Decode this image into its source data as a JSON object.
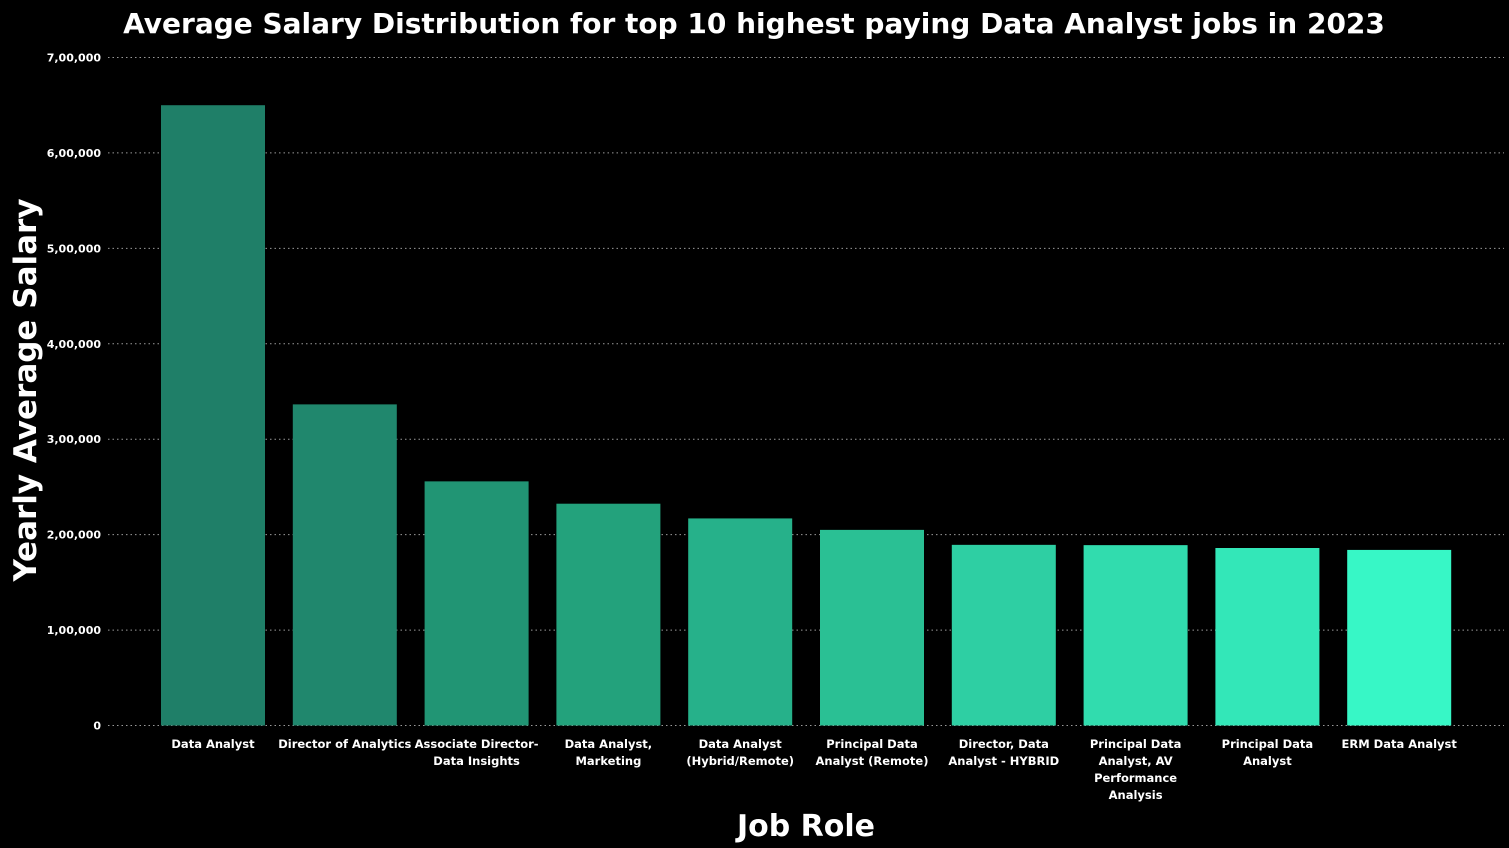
{
  "chart_data": {
    "type": "bar",
    "title": "Average Salary Distribution for top 10 highest paying Data Analyst jobs in 2023",
    "xlabel": "Job Role",
    "ylabel": "Yearly Average Salary",
    "ylim": [
      0,
      700000
    ],
    "yticks": [
      0,
      100000,
      200000,
      300000,
      400000,
      500000,
      600000,
      700000
    ],
    "ytick_labels": [
      "0",
      "1,00,000",
      "2,00,000",
      "3,00,000",
      "4,00,000",
      "5,00,000",
      "6,00,000",
      "7,00,000"
    ],
    "grid": true,
    "categories": [
      [
        "Data Analyst"
      ],
      [
        "Director of Analytics"
      ],
      [
        "Associate Director-",
        "Data Insights"
      ],
      [
        "Data Analyst,",
        "Marketing"
      ],
      [
        "Data Analyst",
        "(Hybrid/Remote)"
      ],
      [
        "Principal Data",
        "Analyst (Remote)"
      ],
      [
        "Director, Data",
        "Analyst - HYBRID"
      ],
      [
        "Principal Data",
        "Analyst, AV",
        "Performance",
        "Analysis"
      ],
      [
        "Principal Data",
        "Analyst"
      ],
      [
        "ERM Data Analyst"
      ]
    ],
    "values": [
      650000,
      336500,
      255829,
      232423,
      217000,
      205000,
      189309,
      189000,
      186000,
      184000
    ],
    "colors": [
      "#1f7f68",
      "#20876d",
      "#219574",
      "#23a27c",
      "#26b18a",
      "#2ac094",
      "#2ecfa3",
      "#31dcae",
      "#33e7b8",
      "#37f7c6"
    ]
  }
}
